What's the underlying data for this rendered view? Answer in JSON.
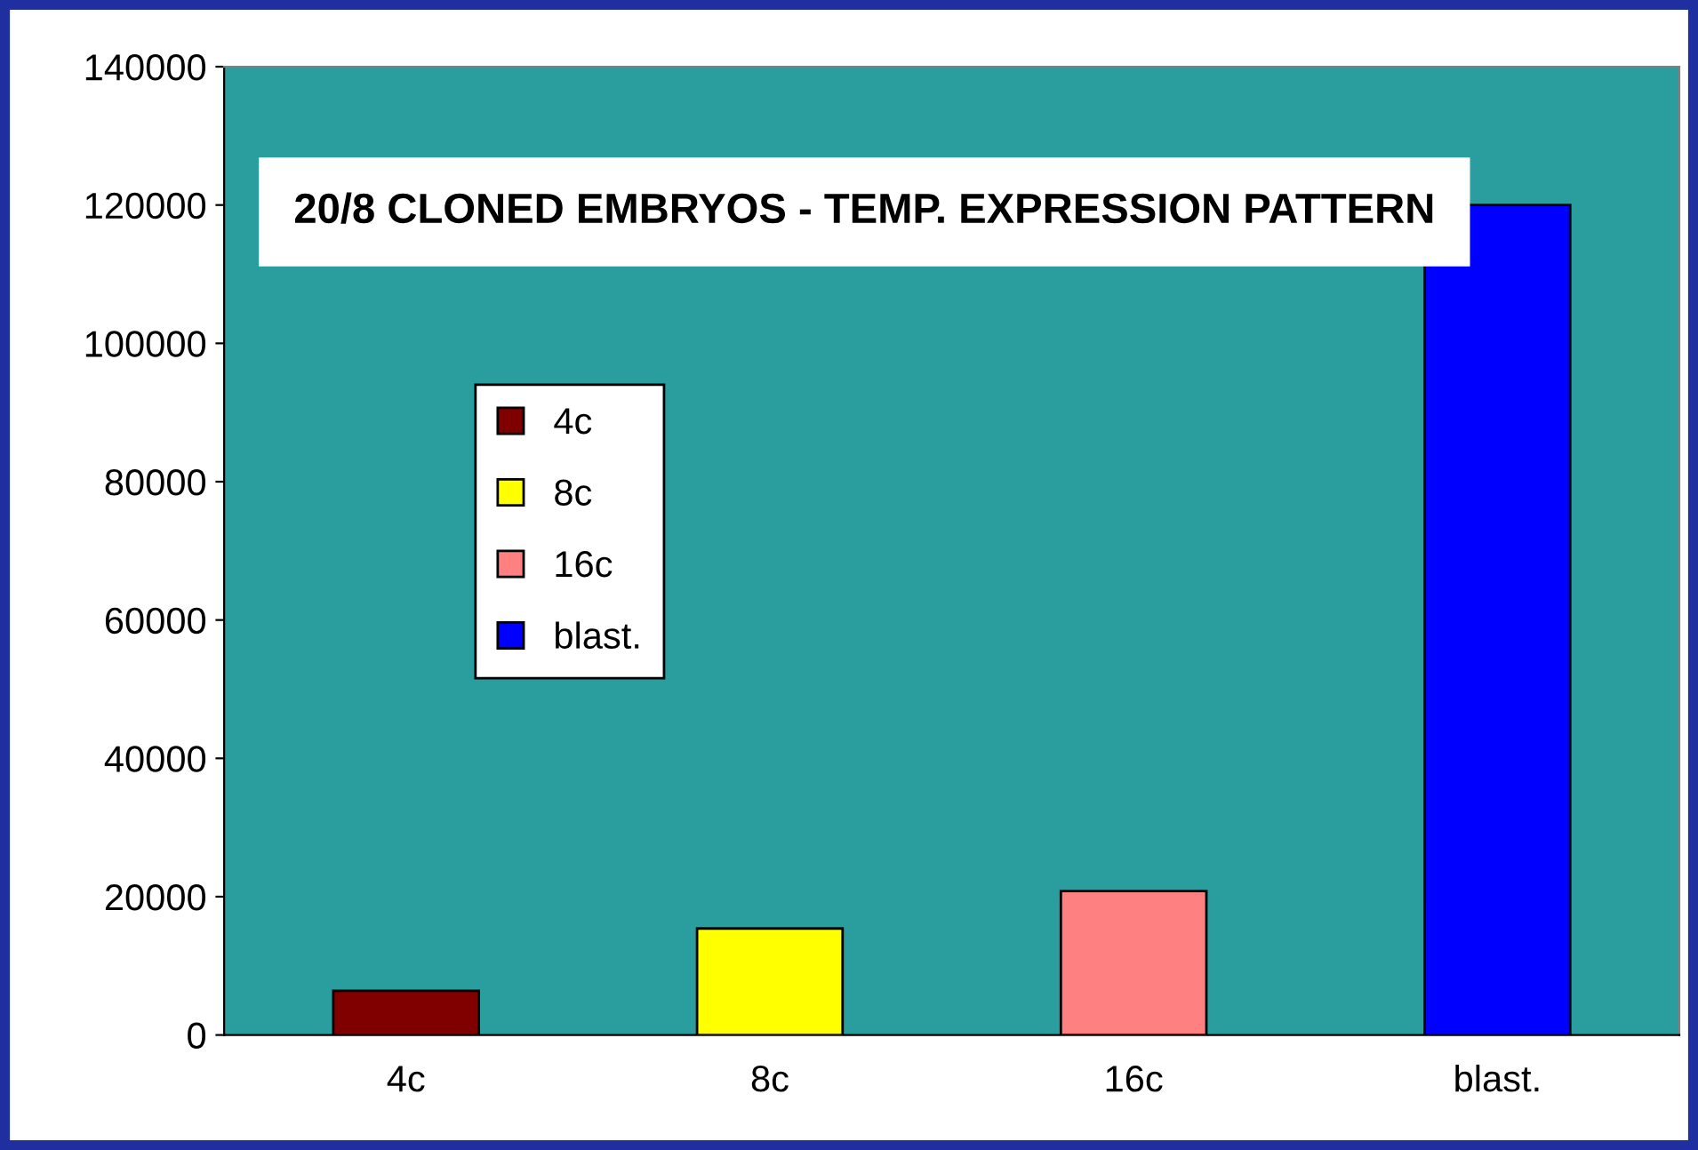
{
  "chart_data": {
    "type": "bar",
    "title": "20/8 CLONED EMBRYOS - TEMP. EXPRESSION PATTERN",
    "categories": [
      "4c",
      "8c",
      "16c",
      "blast."
    ],
    "series": [
      {
        "name": "4c",
        "color": "#800000",
        "values": [
          6400,
          null,
          null,
          null
        ]
      },
      {
        "name": "8c",
        "color": "#ffff00",
        "values": [
          null,
          15400,
          null,
          null
        ]
      },
      {
        "name": "16c",
        "color": "#ff8080",
        "values": [
          null,
          null,
          20800,
          null
        ]
      },
      {
        "name": "blast.",
        "color": "#0000ff",
        "values": [
          null,
          null,
          null,
          120000
        ]
      }
    ],
    "ylim": [
      0,
      140000
    ],
    "yticks": [
      0,
      20000,
      40000,
      60000,
      80000,
      100000,
      120000,
      140000
    ],
    "grid": false,
    "legend": "center left"
  }
}
